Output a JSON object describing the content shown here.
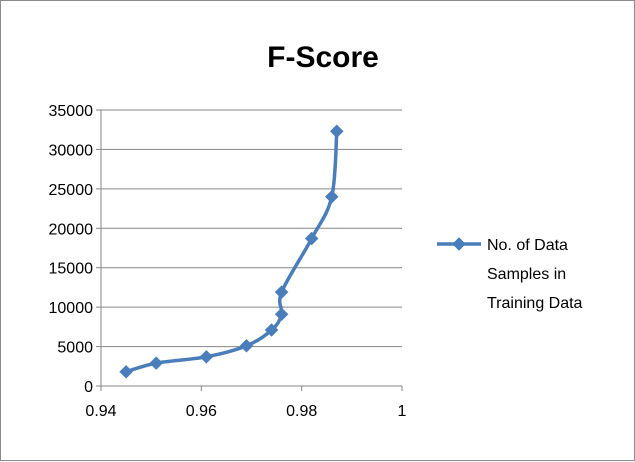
{
  "chart_data": {
    "type": "scatter",
    "title": "F-Score",
    "xlabel": "",
    "ylabel": "",
    "xlim": [
      0.94,
      1
    ],
    "ylim": [
      0,
      35000
    ],
    "x_ticks": [
      "0.94",
      "0.96",
      "0.98",
      "1"
    ],
    "y_ticks": [
      "0",
      "5000",
      "10000",
      "15000",
      "20000",
      "25000",
      "30000",
      "35000"
    ],
    "grid": "horizontal",
    "legend_position": "right",
    "series": [
      {
        "name": "No. of Data Samples in Training Data",
        "legend_lines": [
          "No. of Data",
          "Samples in",
          "Training Data"
        ],
        "color": "#4a7ebb",
        "marker": "diamond",
        "line": "smooth",
        "points": [
          {
            "x": 0.945,
            "y": 1800
          },
          {
            "x": 0.951,
            "y": 2900
          },
          {
            "x": 0.961,
            "y": 3700
          },
          {
            "x": 0.969,
            "y": 5100
          },
          {
            "x": 0.974,
            "y": 7100
          },
          {
            "x": 0.976,
            "y": 9100
          },
          {
            "x": 0.976,
            "y": 11900
          },
          {
            "x": 0.982,
            "y": 18700
          },
          {
            "x": 0.986,
            "y": 24000
          },
          {
            "x": 0.987,
            "y": 32300
          }
        ]
      }
    ]
  }
}
